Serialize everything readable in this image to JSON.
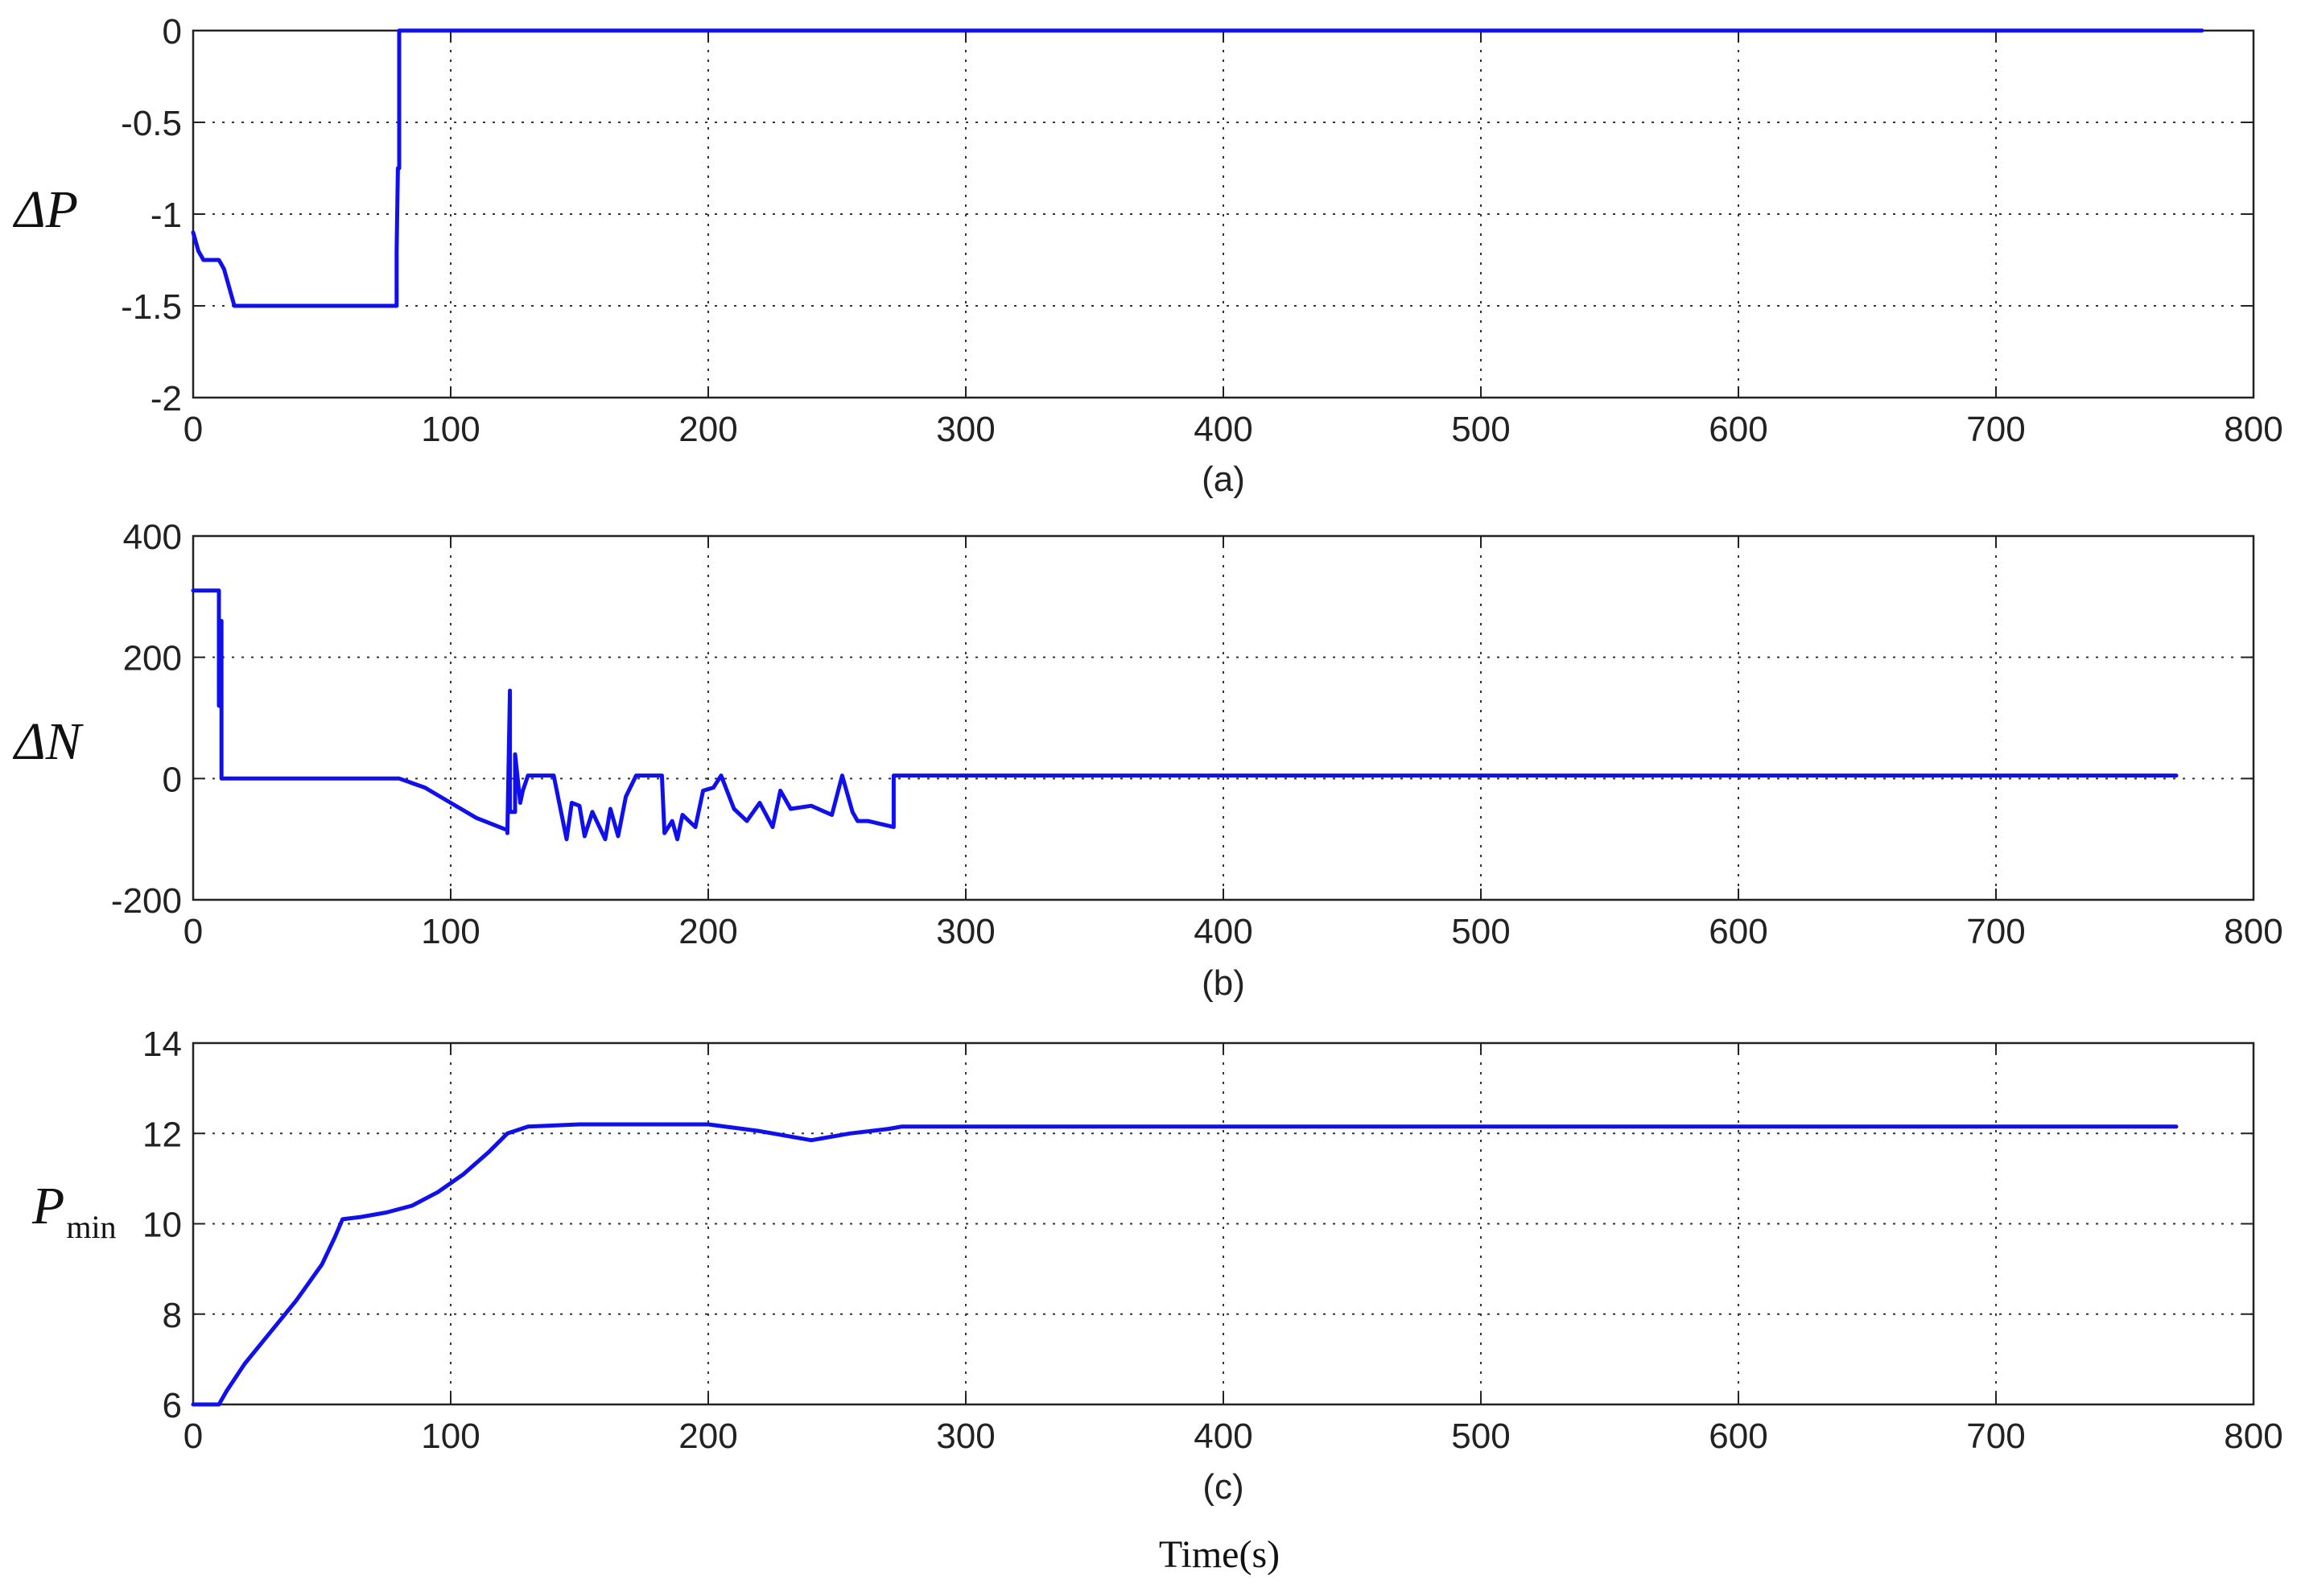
{
  "figure": {
    "xlabel": "Time(s)"
  },
  "chart_data": [
    {
      "type": "line",
      "caption": "(a)",
      "ylabel": "ΔP",
      "xlim": [
        0,
        800
      ],
      "ylim": [
        -2,
        0
      ],
      "xticks": [
        "0",
        "100",
        "200",
        "300",
        "400",
        "500",
        "600",
        "700",
        "800"
      ],
      "yticks": [
        "0",
        "-0.5",
        "-1",
        "-1.5",
        "-2"
      ],
      "grid": true,
      "color": "#1010ee",
      "series": [
        {
          "x": [
            0,
            2,
            4,
            10,
            12,
            16,
            79,
            79,
            79.5,
            80,
            80,
            780
          ],
          "y": [
            -1.1,
            -1.2,
            -1.25,
            -1.25,
            -1.3,
            -1.5,
            -1.5,
            -1.2,
            -0.75,
            -0.75,
            0,
            0
          ]
        }
      ]
    },
    {
      "type": "line",
      "caption": "(b)",
      "ylabel": "ΔN",
      "xlim": [
        0,
        800
      ],
      "ylim": [
        -200,
        400
      ],
      "xticks": [
        "0",
        "100",
        "200",
        "300",
        "400",
        "500",
        "600",
        "700",
        "800"
      ],
      "yticks": [
        "400",
        "200",
        "0",
        "-200"
      ],
      "grid": true,
      "color": "#1010ee",
      "series": [
        {
          "x": [
            0,
            10,
            10,
            11,
            11,
            80,
            90,
            100,
            110,
            122,
            122,
            123,
            123,
            125,
            125,
            127,
            128,
            130,
            140,
            145,
            147,
            150,
            152,
            155,
            160,
            162,
            165,
            168,
            172,
            182,
            183,
            186,
            188,
            190,
            195,
            198,
            202,
            205,
            210,
            215,
            220,
            225,
            228,
            232,
            240,
            248,
            252,
            256,
            258,
            262,
            272,
            272,
            275,
            770
          ],
          "y": [
            310,
            310,
            120,
            260,
            0,
            0,
            -15,
            -40,
            -65,
            -85,
            -90,
            145,
            -55,
            -55,
            40,
            -40,
            -20,
            5,
            5,
            -100,
            -40,
            -45,
            -95,
            -55,
            -100,
            -50,
            -95,
            -30,
            5,
            5,
            -90,
            -70,
            -100,
            -60,
            -80,
            -20,
            -15,
            5,
            -50,
            -70,
            -40,
            -80,
            -20,
            -50,
            -45,
            -60,
            5,
            -55,
            -70,
            -70,
            -80,
            5,
            5,
            5
          ]
        }
      ]
    },
    {
      "type": "line",
      "caption": "(c)",
      "ylabel": "P",
      "ylabel_subscript": "min",
      "xlim": [
        0,
        800
      ],
      "ylim": [
        6,
        14
      ],
      "xticks": [
        "0",
        "100",
        "200",
        "300",
        "400",
        "500",
        "600",
        "700",
        "800"
      ],
      "yticks": [
        "14",
        "12",
        "10",
        "8",
        "6"
      ],
      "grid": true,
      "color": "#1010ee",
      "series": [
        {
          "x": [
            0,
            10,
            13,
            20,
            30,
            40,
            50,
            55,
            58,
            65,
            75,
            85,
            95,
            105,
            115,
            122,
            130,
            150,
            200,
            220,
            240,
            255,
            270,
            275,
            300,
            770
          ],
          "y": [
            6,
            6,
            6.3,
            6.9,
            7.6,
            8.3,
            9.1,
            9.7,
            10.1,
            10.15,
            10.25,
            10.4,
            10.7,
            11.1,
            11.6,
            12.0,
            12.15,
            12.2,
            12.2,
            12.05,
            11.85,
            12.0,
            12.1,
            12.15,
            12.15,
            12.15
          ]
        }
      ]
    }
  ]
}
